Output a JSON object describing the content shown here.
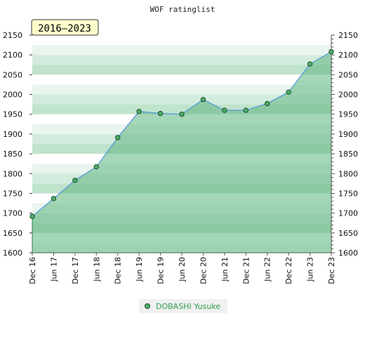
{
  "chart_data": {
    "type": "area",
    "title": "WOF ratinglist",
    "badge": "2016–2023",
    "x": [
      "Dec 16",
      "Jun 17",
      "Dec 17",
      "Jun 18",
      "Dec 18",
      "Jun 19",
      "Dec 19",
      "Jun 20",
      "Dec 20",
      "Jun 21",
      "Dec 21",
      "Jun 22",
      "Dec 22",
      "Jun 23",
      "Dec 23"
    ],
    "series": [
      {
        "name": "DOBASHI Yusuke",
        "values": [
          1692,
          1737,
          1783,
          1817,
          1891,
          1957,
          1952,
          1950,
          1987,
          1960,
          1960,
          1977,
          2006,
          2077,
          2108
        ]
      }
    ],
    "ylim": [
      1600,
      2150
    ],
    "yticks": [
      1600,
      1650,
      1700,
      1750,
      1800,
      1850,
      1900,
      1950,
      2000,
      2050,
      2100,
      2150
    ],
    "legend_position": "bottom-center",
    "colors": {
      "line": "#5aa0d8",
      "marker_fill": "#4caf6a",
      "marker_stroke": "#1d4d2b",
      "legend_text": "#2e9e4f",
      "badge_bg": "#ffffcc"
    }
  }
}
